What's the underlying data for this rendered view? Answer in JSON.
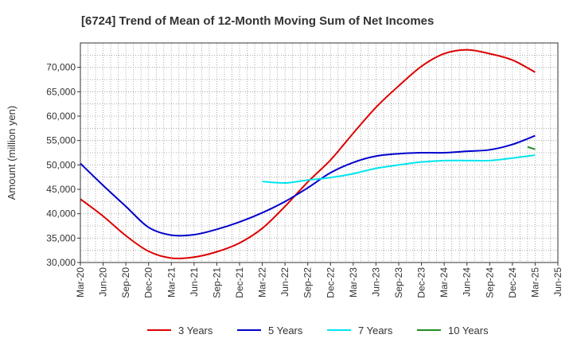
{
  "chart_data": {
    "type": "line",
    "title": "[6724]  Trend of Mean of 12-Month Moving Sum of Net Incomes",
    "ylabel": "Amount (million yen)",
    "xlabel": "",
    "ylim": [
      30000,
      75000
    ],
    "y_ticks": [
      30000,
      35000,
      40000,
      45000,
      50000,
      55000,
      60000,
      65000,
      70000
    ],
    "y_tick_labels": [
      "30,000",
      "35,000",
      "40,000",
      "45,000",
      "50,000",
      "55,000",
      "60,000",
      "65,000",
      "70,000"
    ],
    "x_ticks": [
      "Mar-20",
      "Jun-20",
      "Sep-20",
      "Dec-20",
      "Mar-21",
      "Jun-21",
      "Sep-21",
      "Dec-21",
      "Mar-22",
      "Jun-22",
      "Sep-22",
      "Dec-22",
      "Mar-23",
      "Jun-23",
      "Sep-23",
      "Dec-23",
      "Mar-24",
      "Jun-24",
      "Sep-24",
      "Dec-24",
      "Mar-25",
      "Jun-25"
    ],
    "grid": true,
    "legend_position": "bottom",
    "series": [
      {
        "name": "3 Years",
        "color": "#dd0000",
        "x": [
          "Mar-20",
          "Jun-20",
          "Sep-20",
          "Dec-20",
          "Mar-21",
          "Jun-21",
          "Sep-21",
          "Dec-21",
          "Mar-22",
          "Jun-22",
          "Sep-22",
          "Dec-22",
          "Mar-23",
          "Jun-23",
          "Sep-23",
          "Dec-23",
          "Mar-24",
          "Jun-24",
          "Sep-24",
          "Dec-24",
          "Mar-25"
        ],
        "values": [
          43000,
          39500,
          35500,
          32300,
          30900,
          31100,
          32200,
          34000,
          37000,
          41500,
          46500,
          51000,
          56500,
          61800,
          66200,
          70200,
          72800,
          73600,
          72800,
          71500,
          69000
        ]
      },
      {
        "name": "5 Years",
        "color": "#0000cc",
        "x": [
          "Mar-20",
          "Jun-20",
          "Sep-20",
          "Dec-20",
          "Mar-21",
          "Jun-21",
          "Sep-21",
          "Dec-21",
          "Mar-22",
          "Jun-22",
          "Sep-22",
          "Dec-22",
          "Mar-23",
          "Jun-23",
          "Sep-23",
          "Dec-23",
          "Mar-24",
          "Jun-24",
          "Sep-24",
          "Dec-24",
          "Mar-25"
        ],
        "values": [
          50300,
          45800,
          41500,
          37200,
          35600,
          35700,
          36800,
          38300,
          40200,
          42500,
          45300,
          48400,
          50500,
          51800,
          52300,
          52500,
          52500,
          52800,
          53100,
          54200,
          56000
        ]
      },
      {
        "name": "7 Years",
        "color": "#00e5ee",
        "x": [
          "Mar-22",
          "Jun-22",
          "Sep-22",
          "Dec-22",
          "Mar-23",
          "Jun-23",
          "Sep-23",
          "Dec-23",
          "Mar-24",
          "Jun-24",
          "Sep-24",
          "Dec-24",
          "Mar-25"
        ],
        "values": [
          46600,
          46300,
          46900,
          47400,
          48200,
          49300,
          50000,
          50600,
          50900,
          50900,
          50900,
          51400,
          52000
        ]
      },
      {
        "name": "10 Years",
        "color": "#228b22",
        "x": [
          "Feb-25",
          "Mar-25"
        ],
        "values": [
          53700,
          53200
        ]
      }
    ]
  }
}
